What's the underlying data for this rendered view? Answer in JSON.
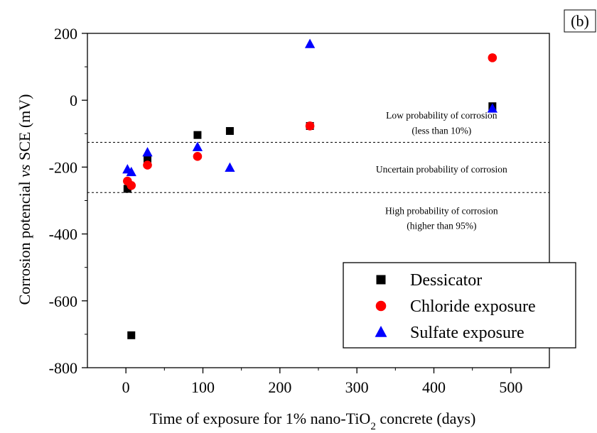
{
  "chart_data": {
    "type": "scatter",
    "panel_label": "(b)",
    "xlabel": {
      "main": "Time of exposure for 1% nano-TiO",
      "subscript": "2",
      "suffix": " concrete (days)"
    },
    "ylabel": {
      "pre": "Corrosion potencial ",
      "italic": "vs",
      "post": " SCE (mV)"
    },
    "xlim": [
      -50,
      550
    ],
    "ylim": [
      -800,
      200
    ],
    "x_ticks": [
      0,
      100,
      200,
      300,
      400,
      500
    ],
    "y_ticks": [
      -800,
      -600,
      -400,
      -200,
      0,
      200
    ],
    "x_tick_labels": [
      "0",
      "100",
      "200",
      "300",
      "400",
      "500"
    ],
    "y_tick_labels": [
      "-800",
      "-600",
      "-400",
      "-200",
      "0",
      "200"
    ],
    "series": [
      {
        "name": "Dessicator",
        "marker": "square",
        "color": "#000000",
        "points": [
          [
            2,
            -265
          ],
          [
            7,
            -703
          ],
          [
            28,
            -178
          ],
          [
            93,
            -104
          ],
          [
            135,
            -92
          ],
          [
            239,
            -77
          ],
          [
            476,
            -18
          ]
        ]
      },
      {
        "name": "Chloride exposure",
        "marker": "circle",
        "color": "#ff0000",
        "points": [
          [
            2,
            -242
          ],
          [
            7,
            -255
          ],
          [
            28,
            -194
          ],
          [
            93,
            -168
          ],
          [
            239,
            -77
          ],
          [
            476,
            127
          ]
        ]
      },
      {
        "name": "Sulfate exposure",
        "marker": "triangle",
        "color": "#0000ff",
        "points": [
          [
            2,
            -207
          ],
          [
            7,
            -215
          ],
          [
            28,
            -156
          ],
          [
            93,
            -140
          ],
          [
            135,
            -202
          ],
          [
            239,
            168
          ],
          [
            476,
            -25
          ]
        ]
      }
    ],
    "reference_lines": [
      -126,
      -276
    ],
    "annotations": [
      {
        "text": "Low probability of corrosion",
        "x": 410,
        "y": -55
      },
      {
        "text": "(less than 10%)",
        "x": 410,
        "y": -100
      },
      {
        "text": "Uncertain probability of corrosion",
        "x": 410,
        "y": -216
      },
      {
        "text": "High probability of corrosion",
        "x": 410,
        "y": -340
      },
      {
        "text": "(higher than 95%)",
        "x": 410,
        "y": -385
      }
    ],
    "legend_position": "bottom-right"
  }
}
